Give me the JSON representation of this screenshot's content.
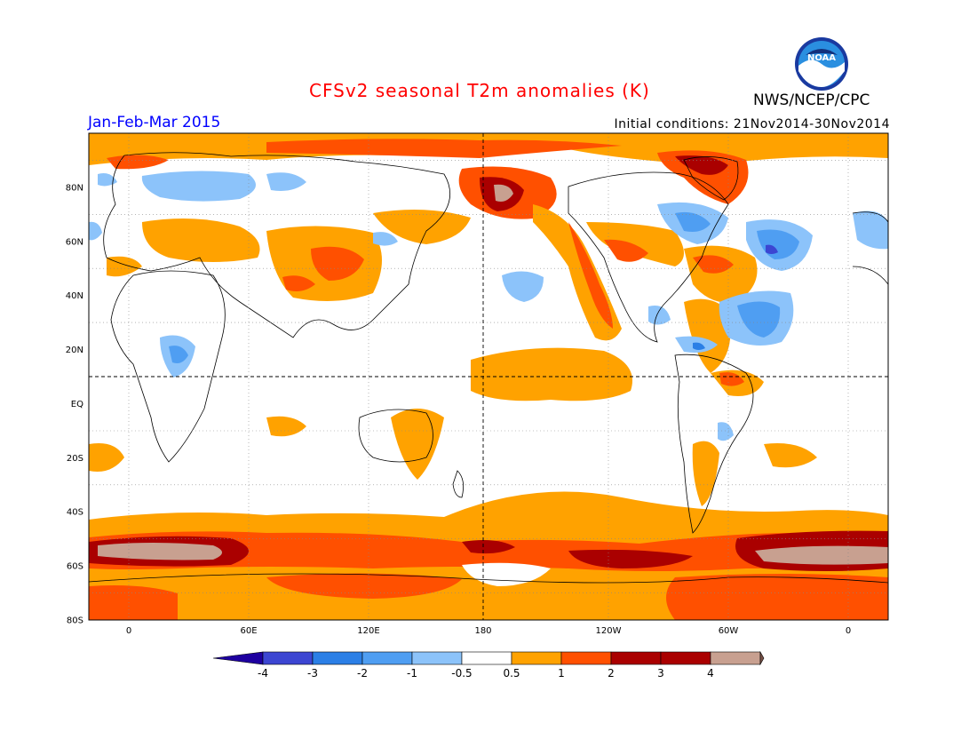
{
  "header": {
    "title": "CFSv2 seasonal T2m anomalies (K)",
    "period": "Jan-Feb-Mar 2015",
    "initial_conditions": "Initial conditions: 21Nov2014-30Nov2014",
    "agency": "NWS/NCEP/CPC",
    "logo_text": "NOAA"
  },
  "map": {
    "projection": "equirectangular",
    "lon_range": [
      -20,
      380
    ],
    "lat_range": [
      -90,
      90
    ],
    "lat_labels": [
      "80N",
      "60N",
      "40N",
      "20N",
      "EQ",
      "20S",
      "40S",
      "60S",
      "80S"
    ],
    "lon_labels": [
      "0",
      "60E",
      "120E",
      "180",
      "120W",
      "60W",
      "0"
    ],
    "colors": {
      "neg4": "#1e00a0",
      "neg3": "#3c46d2",
      "neg2": "#2b7fe6",
      "neg1": "#4f9ef2",
      "neg05": "#8cc3fa",
      "neutral": "#ffffff",
      "pos05": "#ffa200",
      "pos1": "#ff5000",
      "pos2": "#ff2a00",
      "pos3": "#aa0000",
      "pos4": "#c8a090",
      "pos5": "#785046"
    }
  },
  "colorbar": {
    "labels": [
      "-4",
      "-3",
      "-2",
      "-1",
      "-0.5",
      "0.5",
      "1",
      "2",
      "3",
      "4"
    ]
  }
}
